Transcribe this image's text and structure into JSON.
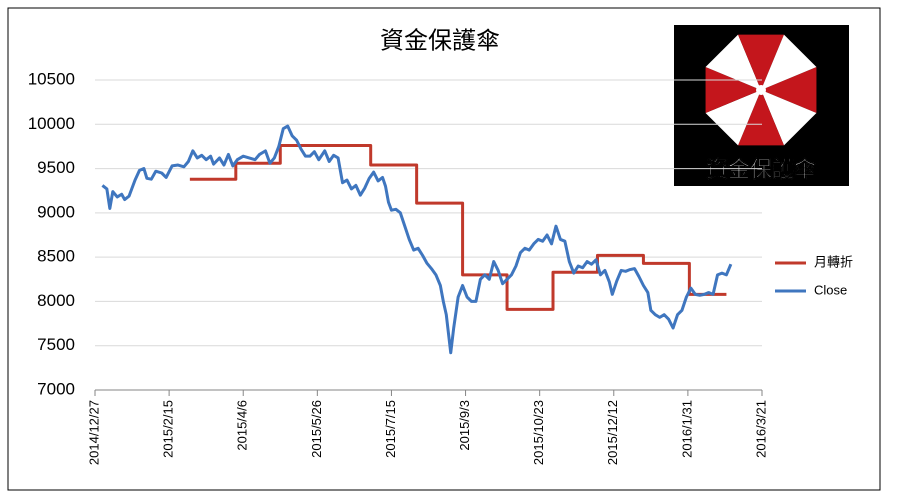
{
  "chart_data": {
    "type": "line",
    "title": "資金保護傘",
    "logo_text": "資金保護傘",
    "xlim": [
      "2014/12/27",
      "2016/3/21"
    ],
    "xticks": [
      "2014/12/27",
      "2015/2/15",
      "2015/4/6",
      "2015/5/26",
      "2015/7/15",
      "2015/9/3",
      "2015/10/23",
      "2015/12/12",
      "2016/1/31",
      "2016/3/21"
    ],
    "ylim": [
      7000,
      10500
    ],
    "yticks": [
      7000,
      7500,
      8000,
      8500,
      9000,
      9500,
      10000,
      10500
    ],
    "grid": true,
    "legend": "right",
    "series": [
      {
        "name": "月轉折",
        "color": "#c0392b",
        "x": [
          "2015/3/1",
          "2015/4/1",
          "2015/4/1",
          "2015/5/1",
          "2015/5/1",
          "2015/7/1",
          "2015/7/1",
          "2015/8/1",
          "2015/8/1",
          "2015/9/1",
          "2015/9/1",
          "2015/10/1",
          "2015/10/1",
          "2015/11/1",
          "2015/11/1",
          "2015/12/1",
          "2015/12/1",
          "2016/1/1",
          "2016/1/1",
          "2016/2/1",
          "2016/2/1",
          "2016/2/26"
        ],
        "values": [
          9380,
          9380,
          9560,
          9560,
          9760,
          9760,
          9540,
          9540,
          9110,
          9110,
          8300,
          8300,
          7910,
          7910,
          8330,
          8330,
          8520,
          8520,
          8430,
          8430,
          8080,
          8080
        ]
      },
      {
        "name": "Close",
        "color": "#3f76bf",
        "x": [
          "2015/1/1",
          "2015/1/4",
          "2015/1/6",
          "2015/1/8",
          "2015/1/11",
          "2015/1/14",
          "2015/1/16",
          "2015/1/19",
          "2015/1/23",
          "2015/1/26",
          "2015/1/29",
          "2015/1/31",
          "2015/2/3",
          "2015/2/6",
          "2015/2/10",
          "2015/2/13",
          "2015/2/17",
          "2015/2/21",
          "2015/2/25",
          "2015/2/28",
          "2015/3/3",
          "2015/3/6",
          "2015/3/9",
          "2015/3/12",
          "2015/3/15",
          "2015/3/17",
          "2015/3/21",
          "2015/3/24",
          "2015/3/27",
          "2015/3/30",
          "2015/4/2",
          "2015/4/6",
          "2015/4/10",
          "2015/4/14",
          "2015/4/17",
          "2015/4/21",
          "2015/4/24",
          "2015/4/27",
          "2015/4/30",
          "2015/5/3",
          "2015/5/6",
          "2015/5/9",
          "2015/5/12",
          "2015/5/15",
          "2015/5/18",
          "2015/5/21",
          "2015/5/24",
          "2015/5/27",
          "2015/5/31",
          "2015/6/3",
          "2015/6/6",
          "2015/6/9",
          "2015/6/12",
          "2015/6/15",
          "2015/6/18",
          "2015/6/21",
          "2015/6/24",
          "2015/6/27",
          "2015/6/30",
          "2015/7/3",
          "2015/7/6",
          "2015/7/9",
          "2015/7/11",
          "2015/7/13",
          "2015/7/15",
          "2015/7/18",
          "2015/7/21",
          "2015/7/24",
          "2015/7/27",
          "2015/7/30",
          "2015/8/2",
          "2015/8/5",
          "2015/8/8",
          "2015/8/11",
          "2015/8/14",
          "2015/8/17",
          "2015/8/19",
          "2015/8/21",
          "2015/8/24",
          "2015/8/26",
          "2015/8/29",
          "2015/9/1",
          "2015/9/4",
          "2015/9/7",
          "2015/9/10",
          "2015/9/13",
          "2015/9/16",
          "2015/9/19",
          "2015/9/22",
          "2015/9/25",
          "2015/9/28",
          "2015/10/1",
          "2015/10/4",
          "2015/10/7",
          "2015/10/10",
          "2015/10/13",
          "2015/10/16",
          "2015/10/19",
          "2015/10/22",
          "2015/10/25",
          "2015/10/28",
          "2015/10/31",
          "2015/11/3",
          "2015/11/6",
          "2015/11/9",
          "2015/11/12",
          "2015/11/15",
          "2015/11/18",
          "2015/11/21",
          "2015/11/24",
          "2015/11/27",
          "2015/11/30",
          "2015/12/3",
          "2015/12/6",
          "2015/12/9",
          "2015/12/11",
          "2015/12/14",
          "2015/12/17",
          "2015/12/20",
          "2015/12/23",
          "2015/12/26",
          "2015/12/29",
          "2016/1/1",
          "2016/1/4",
          "2016/1/6",
          "2016/1/9",
          "2016/1/12",
          "2016/1/15",
          "2016/1/18",
          "2016/1/21",
          "2016/1/24",
          "2016/1/27",
          "2016/1/30",
          "2016/2/2",
          "2016/2/5",
          "2016/2/8",
          "2016/2/11",
          "2016/2/14",
          "2016/2/17",
          "2016/2/20",
          "2016/2/23",
          "2016/2/26",
          "2016/2/29"
        ],
        "values": [
          9310,
          9270,
          9050,
          9240,
          9180,
          9210,
          9150,
          9190,
          9370,
          9480,
          9500,
          9390,
          9380,
          9470,
          9450,
          9400,
          9530,
          9540,
          9520,
          9580,
          9700,
          9620,
          9650,
          9600,
          9640,
          9550,
          9620,
          9540,
          9660,
          9530,
          9600,
          9640,
          9620,
          9600,
          9660,
          9700,
          9560,
          9620,
          9750,
          9950,
          9980,
          9870,
          9820,
          9720,
          9640,
          9640,
          9690,
          9600,
          9700,
          9580,
          9650,
          9620,
          9340,
          9370,
          9270,
          9310,
          9200,
          9280,
          9390,
          9460,
          9360,
          9400,
          9300,
          9120,
          9030,
          9040,
          9000,
          8850,
          8700,
          8580,
          8600,
          8520,
          8430,
          8370,
          8300,
          8180,
          8000,
          7850,
          7420,
          7700,
          8050,
          8180,
          8050,
          8000,
          8000,
          8250,
          8300,
          8250,
          8450,
          8350,
          8200,
          8250,
          8300,
          8400,
          8550,
          8600,
          8580,
          8650,
          8700,
          8680,
          8750,
          8650,
          8850,
          8700,
          8680,
          8450,
          8320,
          8400,
          8380,
          8450,
          8420,
          8470,
          8300,
          8350,
          8220,
          8080,
          8230,
          8350,
          8340,
          8360,
          8370,
          8280,
          8180,
          8100,
          7900,
          7850,
          7820,
          7850,
          7800,
          7700,
          7850,
          7900,
          8050,
          8150,
          8080,
          8070,
          8080,
          8100,
          8080,
          8300,
          8320,
          8300,
          8420
        ]
      }
    ]
  }
}
